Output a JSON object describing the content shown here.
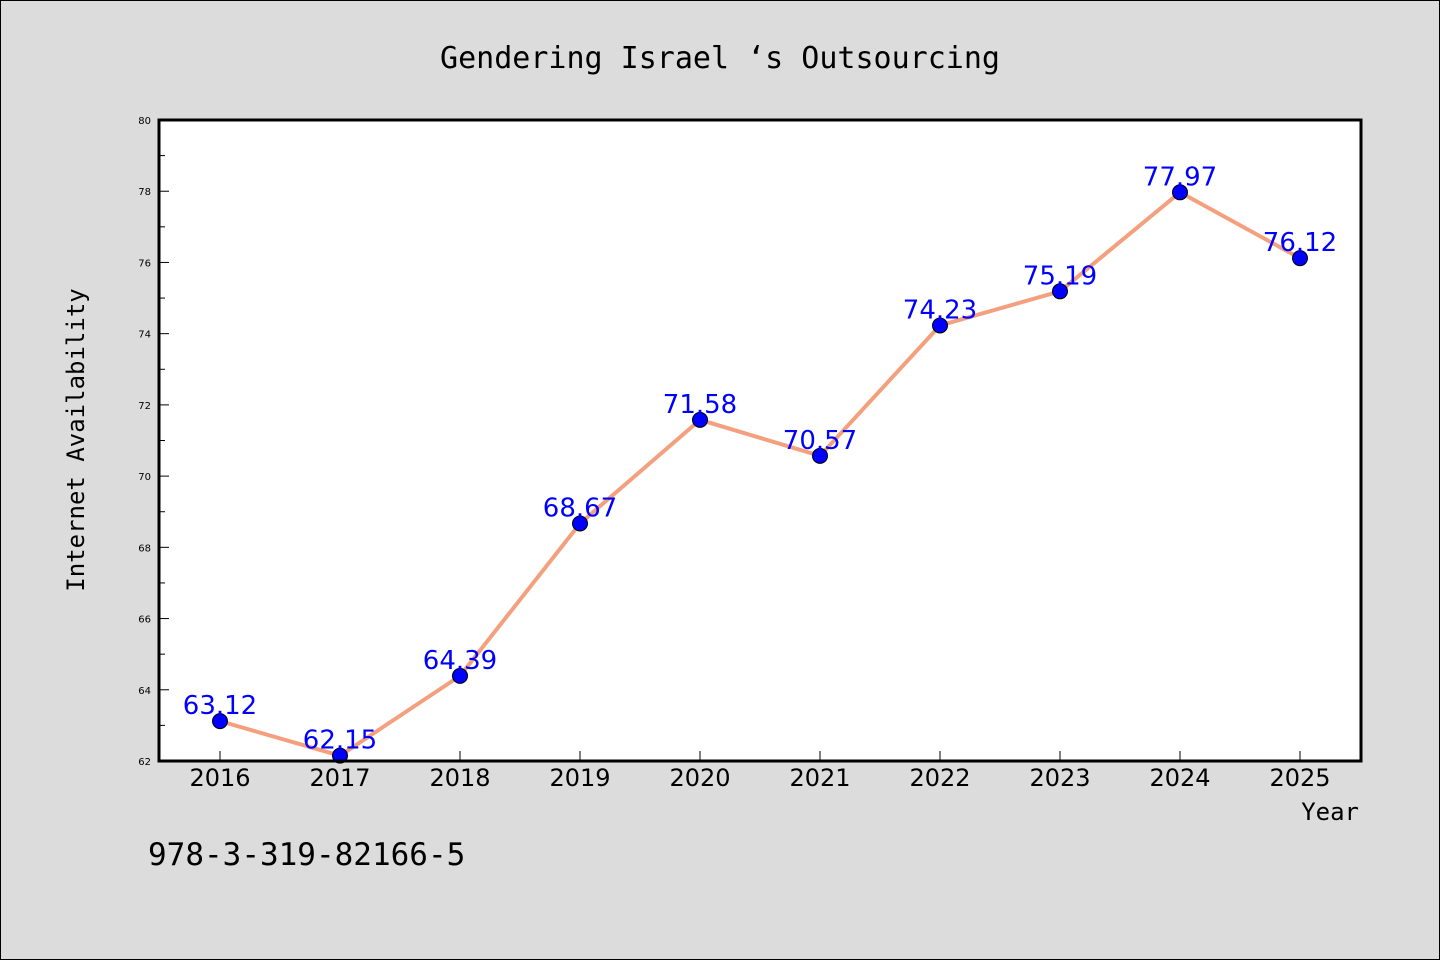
{
  "footer": {
    "code": "978-3-319-82166-5"
  },
  "colors": {
    "background": "#dcdcdc",
    "plot_background": "#ffffff",
    "line": "#f4a07f",
    "marker": "#0000ff",
    "label": "#0000ff"
  },
  "chart_data": {
    "type": "line",
    "title": "Gendering Israel ‘s Outsourcing",
    "xlabel": "Year",
    "ylabel": "Internet Availability",
    "categories": [
      "2016",
      "2017",
      "2018",
      "2019",
      "2020",
      "2021",
      "2022",
      "2023",
      "2024",
      "2025"
    ],
    "series": [
      {
        "values": [
          63.12,
          62.15,
          64.39,
          68.67,
          71.58,
          70.57,
          74.23,
          75.19,
          77.97,
          76.12
        ],
        "labels": [
          "63.12",
          "62.15",
          "64.39",
          "68.67",
          "71.58",
          "70.57",
          "74.23",
          "75.19",
          "77.97",
          "76.12"
        ]
      }
    ],
    "ylim": [
      62,
      80
    ],
    "yticks": [
      "62",
      "64",
      "66",
      "68",
      "70",
      "72",
      "74",
      "76",
      "78",
      "80"
    ],
    "grid": false,
    "legend": "none",
    "markers": "filled circles"
  }
}
